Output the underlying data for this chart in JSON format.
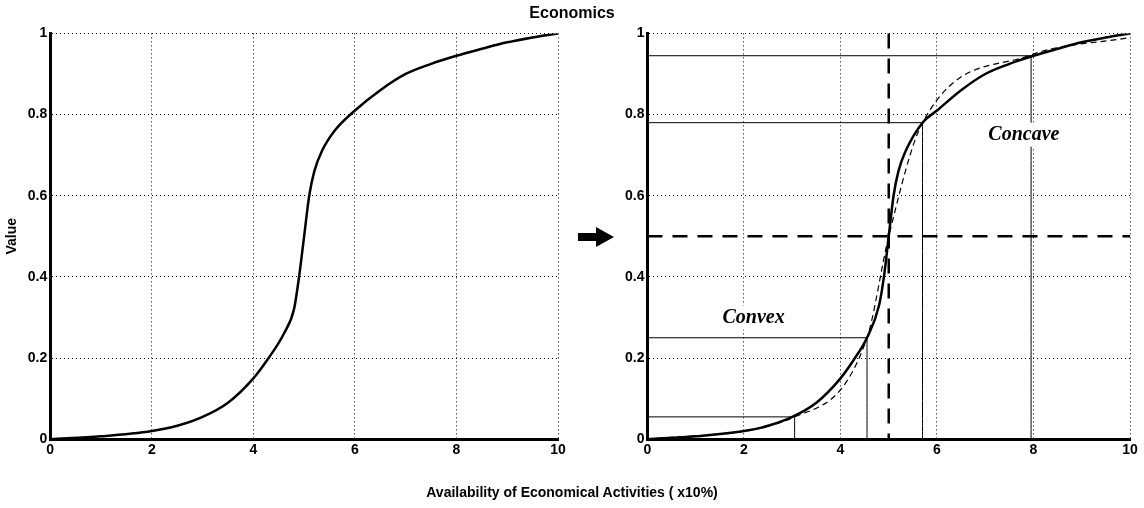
{
  "chart_data": [
    {
      "type": "line",
      "title": "Economics",
      "xlabel": "Availability of Economical Activities ( x10%)",
      "ylabel": "Value",
      "series": [
        {
          "color": "#000000",
          "x": [
            0,
            1,
            2,
            2.5,
            3,
            3.5,
            4,
            4.3,
            4.6,
            4.8,
            4.9,
            5,
            5.1,
            5.2,
            5.35,
            5.6,
            6,
            6.5,
            7,
            7.5,
            8,
            8.5,
            9,
            9.5,
            10
          ],
          "values": [
            0,
            0.007,
            0.02,
            0.033,
            0.055,
            0.09,
            0.15,
            0.2,
            0.26,
            0.32,
            0.4,
            0.5,
            0.6,
            0.66,
            0.71,
            0.76,
            0.81,
            0.86,
            0.9,
            0.925,
            0.945,
            0.962,
            0.978,
            0.99,
            1
          ]
        }
      ],
      "xlim": [
        0,
        10
      ],
      "ylim": [
        0,
        1
      ],
      "xticks": [
        0,
        2,
        4,
        6,
        8,
        10
      ],
      "yticks": [
        0,
        0.2,
        0.4,
        0.6,
        0.8,
        1
      ],
      "grid": true,
      "legend": false,
      "line_style": "solid"
    },
    {
      "type": "line",
      "series": [
        {
          "color": "#000000",
          "line_style": "solid",
          "x": [
            0,
            1,
            2,
            2.5,
            3,
            3.5,
            4,
            4.3,
            4.55,
            4.8,
            4.9,
            5,
            5.1,
            5.2,
            5.35,
            5.7,
            6,
            6.5,
            7,
            7.5,
            8,
            8.5,
            9,
            9.5,
            10
          ],
          "values": [
            0,
            0.007,
            0.02,
            0.033,
            0.055,
            0.09,
            0.15,
            0.2,
            0.25,
            0.33,
            0.4,
            0.5,
            0.6,
            0.66,
            0.71,
            0.78,
            0.81,
            0.86,
            0.9,
            0.925,
            0.945,
            0.962,
            0.978,
            0.99,
            1
          ]
        },
        {
          "color": "#000000",
          "line_style": "dashed",
          "x": [
            0,
            3.05,
            4.55,
            5,
            5.7,
            7.9,
            10
          ],
          "values": [
            0,
            0.055,
            0.25,
            0.5,
            0.78,
            0.945,
            0.99
          ]
        },
        {
          "color": "#000000",
          "line_style": "solid",
          "x": [
            0,
            3.05,
            3.05
          ],
          "values": [
            0.055,
            0.055,
            0
          ]
        },
        {
          "color": "#000000",
          "line_style": "solid",
          "x": [
            0,
            4.55,
            4.55
          ],
          "values": [
            0.25,
            0.25,
            0
          ]
        },
        {
          "color": "#000000",
          "line_style": "solid",
          "x": [
            0,
            5.7,
            5.7
          ],
          "values": [
            0.78,
            0.78,
            0
          ]
        },
        {
          "color": "#000000",
          "line_style": "solid",
          "x": [
            0,
            7.95,
            7.95
          ],
          "values": [
            0.945,
            0.945,
            0
          ]
        }
      ],
      "ref_lines": [
        {
          "axis": "x",
          "value": 5,
          "color": "#000000",
          "line_style": "dashed"
        },
        {
          "axis": "y",
          "value": 0.5,
          "color": "#000000",
          "line_style": "dashed"
        }
      ],
      "annotations": [
        "Convex",
        "Concave"
      ],
      "xlim": [
        0,
        10
      ],
      "ylim": [
        0,
        1
      ],
      "xticks": [
        0,
        2,
        4,
        6,
        8,
        10
      ],
      "yticks": [
        0,
        0.2,
        0.4,
        0.6,
        0.8,
        1
      ],
      "grid": true,
      "legend": false
    }
  ]
}
